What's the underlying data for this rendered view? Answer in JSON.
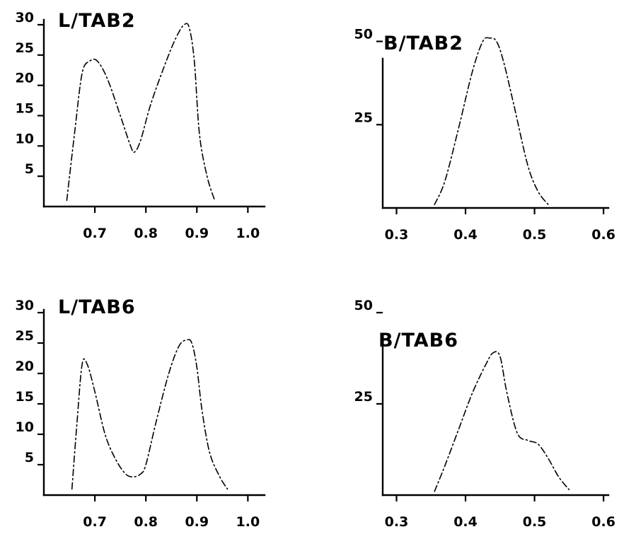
{
  "chart_data": [
    {
      "type": "line",
      "title": "L/TAB2",
      "xlabel": "",
      "ylabel": "",
      "xlim": [
        0.6,
        1.03
      ],
      "ylim": [
        0,
        30
      ],
      "xticks": [
        0.7,
        0.8,
        0.9,
        1.0
      ],
      "xtick_labels": [
        "0.7",
        "0.8",
        "0.9",
        "1.0"
      ],
      "yticks": [
        5,
        10,
        15,
        20,
        25,
        30
      ],
      "ytick_labels": [
        "5",
        "10",
        "15",
        "20",
        "25",
        "30"
      ],
      "grid": false,
      "series": [
        {
          "x": [
            0.645,
            0.66,
            0.675,
            0.69,
            0.705,
            0.725,
            0.75,
            0.77,
            0.778,
            0.79,
            0.81,
            0.84,
            0.86,
            0.875,
            0.885,
            0.895,
            0.905,
            0.92,
            0.935
          ],
          "y": [
            1,
            12,
            22,
            24,
            24,
            21,
            15,
            10,
            9,
            11,
            17,
            24,
            28,
            30,
            29.5,
            24,
            12,
            5,
            1
          ]
        }
      ]
    },
    {
      "type": "line",
      "title": "B/TAB2",
      "xlabel": "",
      "ylabel": "",
      "xlim": [
        0.28,
        0.605
      ],
      "ylim": [
        0,
        55
      ],
      "xticks": [
        0.3,
        0.4,
        0.5,
        0.6
      ],
      "xtick_labels": [
        "0.3",
        "0.4",
        "0.5",
        "0.6"
      ],
      "yticks": [
        25,
        50
      ],
      "ytick_labels": [
        "25",
        "50"
      ],
      "grid": false,
      "series": [
        {
          "x": [
            0.355,
            0.37,
            0.39,
            0.41,
            0.425,
            0.435,
            0.445,
            0.455,
            0.47,
            0.49,
            0.505,
            0.52
          ],
          "y": [
            1,
            8,
            24,
            41,
            50,
            51,
            50,
            44,
            31,
            13,
            5,
            1
          ]
        }
      ]
    },
    {
      "type": "line",
      "title": "L/TAB6",
      "xlabel": "",
      "ylabel": "",
      "xlim": [
        0.6,
        1.03
      ],
      "ylim": [
        0,
        30
      ],
      "xticks": [
        0.7,
        0.8,
        0.9,
        1.0
      ],
      "xtick_labels": [
        "0.7",
        "0.8",
        "0.9",
        "1.0"
      ],
      "yticks": [
        5,
        10,
        15,
        20,
        25,
        30
      ],
      "ytick_labels": [
        "5",
        "10",
        "15",
        "20",
        "25",
        "30"
      ],
      "grid": false,
      "series": [
        {
          "x": [
            0.655,
            0.665,
            0.675,
            0.685,
            0.7,
            0.72,
            0.74,
            0.76,
            0.775,
            0.79,
            0.8,
            0.82,
            0.845,
            0.865,
            0.88,
            0.89,
            0.9,
            0.91,
            0.925,
            0.945,
            0.96
          ],
          "y": [
            1,
            12,
            21.5,
            21.5,
            17,
            10,
            6,
            3.5,
            3,
            3.5,
            5,
            12,
            20,
            24.5,
            25.5,
            25,
            21,
            14,
            7,
            3,
            1
          ]
        }
      ]
    },
    {
      "type": "line",
      "title": "B/TAB6",
      "xlabel": "",
      "ylabel": "",
      "xlim": [
        0.28,
        0.605
      ],
      "ylim": [
        0,
        50
      ],
      "xticks": [
        0.3,
        0.4,
        0.5,
        0.6
      ],
      "xtick_labels": [
        "0.3",
        "0.4",
        "0.5",
        "0.6"
      ],
      "yticks": [
        25,
        50
      ],
      "ytick_labels": [
        "25",
        "50"
      ],
      "grid": false,
      "series": [
        {
          "x": [
            0.355,
            0.37,
            0.39,
            0.41,
            0.43,
            0.44,
            0.45,
            0.46,
            0.475,
            0.49,
            0.505,
            0.52,
            0.535,
            0.55
          ],
          "y": [
            1,
            8,
            18,
            28,
            36,
            39,
            38,
            28,
            17,
            15,
            14,
            10,
            5,
            1.5
          ]
        }
      ]
    }
  ]
}
